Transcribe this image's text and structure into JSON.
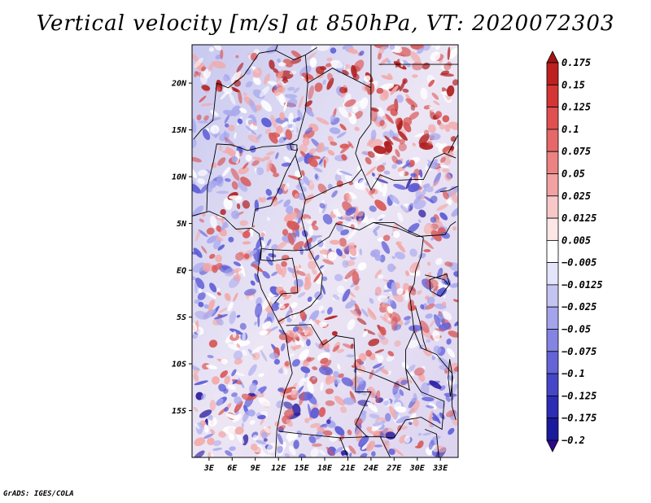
{
  "title": "Vertical velocity [m/s] at 850hPa, VT: 2020072303",
  "credit": "GrADS: IGES/COLA",
  "map": {
    "lat_labels": [
      "20N",
      "15N",
      "10N",
      "5N",
      "EQ",
      "5S",
      "10S",
      "15S"
    ],
    "lon_labels": [
      "3E",
      "6E",
      "9E",
      "12E",
      "15E",
      "18E",
      "21E",
      "24E",
      "27E",
      "30E",
      "33E"
    ],
    "field_palette": [
      "#2a1a9e",
      "#5b5bd6",
      "#a9a9ee",
      "#ffffff",
      "#f2a9a9",
      "#d85858",
      "#b02020"
    ]
  },
  "colorbar": {
    "levels": [
      "0.175",
      "0.15",
      "0.125",
      "0.1",
      "0.075",
      "0.05",
      "0.025",
      "0.0125",
      "0.005",
      "−0.005",
      "−0.0125",
      "−0.025",
      "−0.05",
      "−0.075",
      "−0.1",
      "−0.125",
      "−0.175",
      "−0.2"
    ],
    "colors": [
      "#a01414",
      "#be2020",
      "#d43535",
      "#e05050",
      "#e66868",
      "#ec8282",
      "#f2a2a2",
      "#f8c8c8",
      "#fde6e6",
      "#ffffff",
      "#e4e4fa",
      "#c4c4f2",
      "#a4a4ec",
      "#8484e2",
      "#6464d8",
      "#4646c8",
      "#2c2cb4",
      "#1a1a9c",
      "#2a0a8a"
    ]
  }
}
